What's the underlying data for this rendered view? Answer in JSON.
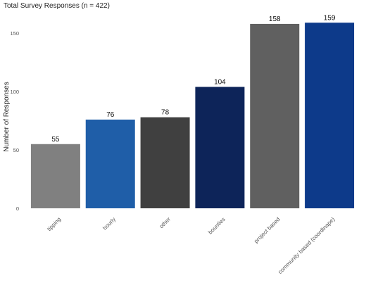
{
  "chart_data": {
    "type": "bar",
    "title": "Total Survey Responses (n = 422)",
    "xlabel": "",
    "ylabel": "Number of Responses",
    "categories": [
      "tipping",
      "hourly",
      "other",
      "bounties",
      "project based",
      "community based (coordinape)"
    ],
    "values": [
      55,
      76,
      78,
      104,
      158,
      159
    ],
    "colors": [
      "#808080",
      "#1f5ea8",
      "#404040",
      "#0d2459",
      "#606060",
      "#0d3a8a"
    ],
    "ylim": [
      0,
      167
    ],
    "yticks": [
      0,
      50,
      100,
      150
    ],
    "grid": false,
    "legend": "none"
  }
}
